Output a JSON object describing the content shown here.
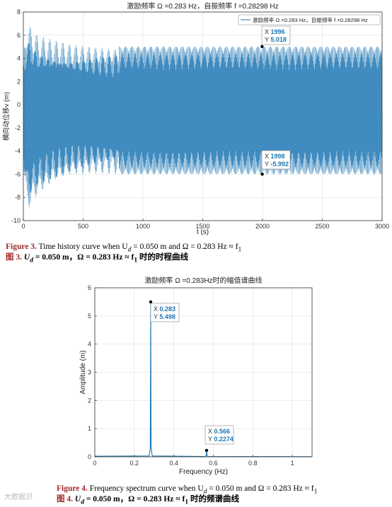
{
  "figure3": {
    "chart_data": {
      "type": "line",
      "title": "激励频率 Ω =0.283 Hz，自振频率 f =0.28298 Hz",
      "legend": "激励频率 Ω =0.283 Hz，自振频率 f =0.28298 Hz",
      "legend_position": "top-right",
      "xlabel": "t (s)",
      "ylabel": "横向动位移v (m)",
      "xlim": [
        0,
        3000
      ],
      "ylim": [
        -10,
        8
      ],
      "xticks": [
        "0",
        "500",
        "1000",
        "1500",
        "2000",
        "2500",
        "3000"
      ],
      "yticks": [
        "-10",
        "-8",
        "-6",
        "-4",
        "-2",
        "0",
        "2",
        "4",
        "6",
        "8"
      ],
      "grid": true,
      "color": "#1f77b4",
      "series": [
        {
          "envelope_upper": [
            [
              0,
              4.5
            ],
            [
              30,
              7.2
            ],
            [
              120,
              6.0
            ],
            [
              250,
              5.6
            ],
            [
              400,
              5.2
            ],
            [
              600,
              5.05
            ],
            [
              800,
              5.02
            ],
            [
              3000,
              5.02
            ]
          ],
          "envelope_lower": [
            [
              0,
              -5.5
            ],
            [
              30,
              -9.4
            ],
            [
              120,
              -8.0
            ],
            [
              250,
              -7.0
            ],
            [
              400,
              -6.3
            ],
            [
              600,
              -6.05
            ],
            [
              800,
              -5.99
            ],
            [
              3000,
              -5.99
            ]
          ]
        }
      ],
      "datatips": [
        {
          "x_label": "X",
          "x_value": "1996",
          "y_label": "Y",
          "y_value": "5.018",
          "x": 1996,
          "y": 5.018
        },
        {
          "x_label": "X",
          "x_value": "1998",
          "y_label": "Y",
          "y_value": "-5.992",
          "x": 1998,
          "y": -5.992
        }
      ]
    },
    "caption_en_prefix": "Figure 3.",
    "caption_en_text": " Time history curve when U",
    "caption_en_sub_d": "d",
    "caption_en_text2": " = 0.050 m and Ω = 0.283 Hz ≈ f",
    "caption_en_sub_1": "1",
    "caption_cn_prefix": "图 3.",
    "caption_cn_text": " U",
    "caption_cn_sub_d": "d",
    "caption_cn_text2": " = 0.050 m，Ω = 0.283 Hz ≈ f",
    "caption_cn_sub_1": "1",
    "caption_cn_text3": " 时的时程曲线"
  },
  "figure4": {
    "chart_data": {
      "type": "line",
      "title": "激励频率 Ω =0.283Hz时的幅值谱曲线",
      "xlabel": "Frequency (Hz)",
      "ylabel": "Amplitude (m)",
      "xlim": [
        0,
        1.1
      ],
      "ylim": [
        0,
        6
      ],
      "xticks": [
        "0",
        "0.2",
        "0.4",
        "0.6",
        "0.8",
        "1"
      ],
      "yticks": [
        "0",
        "1",
        "2",
        "3",
        "4",
        "5",
        "6"
      ],
      "grid": true,
      "color": "#1f77b4",
      "series": [
        {
          "x": [
            0,
            0.275,
            0.281,
            0.283,
            0.285,
            0.291,
            0.56,
            0.564,
            0.566,
            0.568,
            0.572,
            1.1
          ],
          "y": [
            0.02,
            0.03,
            0.3,
            5.498,
            0.3,
            0.03,
            0.01,
            0.05,
            0.2274,
            0.05,
            0.01,
            0.005
          ]
        }
      ],
      "datatips": [
        {
          "x_label": "X",
          "x_value": "0.283",
          "y_label": "Y",
          "y_value": "5.498",
          "x": 0.283,
          "y": 5.498
        },
        {
          "x_label": "X",
          "x_value": "0.566",
          "y_label": "Y",
          "y_value": "0.2274",
          "x": 0.566,
          "y": 0.2274
        }
      ]
    },
    "caption_en_prefix": "Figure 4.",
    "caption_en_text": " Frequency spectrum curve when U",
    "caption_en_sub_d": "d",
    "caption_en_text2": " = 0.050 m and Ω = 0.283 Hz ≈ f",
    "caption_en_sub_1": "1",
    "caption_cn_prefix": "图 4.",
    "caption_cn_text": " U",
    "caption_cn_sub_d": "d",
    "caption_cn_text2": " = 0.050 m，Ω = 0.283 Hz ≈ f",
    "caption_cn_sub_1": "1",
    "caption_cn_text3": " 时的频谱曲线"
  },
  "watermark": "大数据识"
}
